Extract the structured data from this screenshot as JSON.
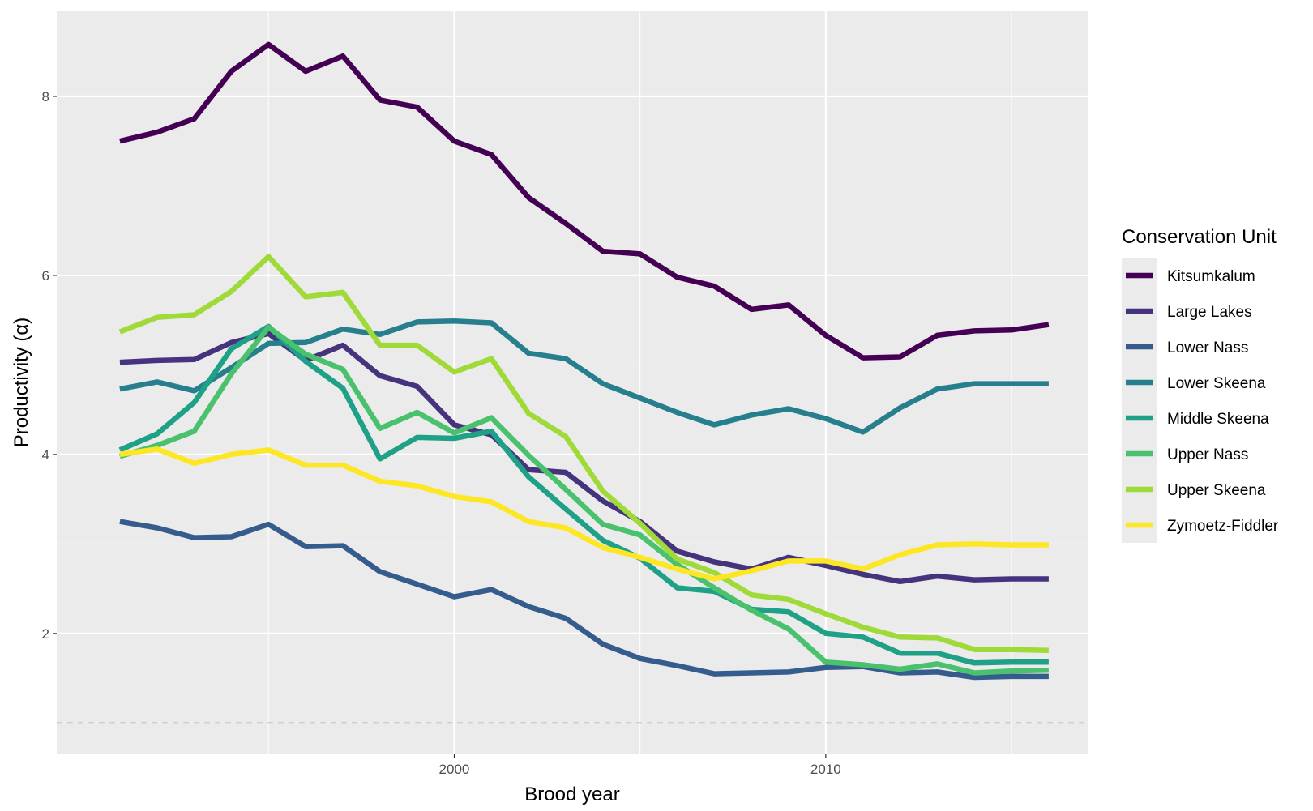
{
  "chart_data": {
    "type": "line",
    "xlabel": "Brood year",
    "ylabel": "Productivity (α)",
    "xlim": [
      1989.3,
      2017.05
    ],
    "ylim": [
      0.65,
      8.95
    ],
    "x_ticks": [
      2000,
      2010
    ],
    "x_minor_ticks": [
      1995,
      2005,
      2015
    ],
    "y_ticks": [
      2,
      4,
      6,
      8
    ],
    "y_minor_ticks": [
      1,
      3,
      5,
      7
    ],
    "grid": true,
    "reference_line": {
      "y": 1,
      "style": "dashed",
      "color": "#bdbdbd"
    },
    "legend": {
      "title": "Conservation Unit",
      "position": "right"
    },
    "x": [
      1991,
      1992,
      1993,
      1994,
      1995,
      1996,
      1997,
      1998,
      1999,
      2000,
      2001,
      2002,
      2003,
      2004,
      2005,
      2006,
      2007,
      2008,
      2009,
      2010,
      2011,
      2012,
      2013,
      2014,
      2015,
      2016,
      2017
    ],
    "series": [
      {
        "name": "Kitsumkalum",
        "color": "#440154",
        "values": [
          7.5,
          7.6,
          7.75,
          8.28,
          8.58,
          8.28,
          8.45,
          7.96,
          7.88,
          7.5,
          7.35,
          6.87,
          6.58,
          6.27,
          6.24,
          5.98,
          5.88,
          5.62,
          5.67,
          5.33,
          5.08,
          5.09,
          5.33,
          5.38,
          5.39,
          5.45,
          null
        ]
      },
      {
        "name": "Large Lakes",
        "color": "#46337E",
        "values": [
          5.03,
          5.05,
          5.06,
          5.25,
          5.35,
          5.05,
          5.22,
          4.88,
          4.76,
          4.33,
          4.22,
          3.83,
          3.8,
          3.48,
          3.25,
          2.92,
          2.8,
          2.72,
          2.85,
          2.76,
          2.66,
          2.58,
          2.64,
          2.6,
          2.61,
          2.61,
          null
        ]
      },
      {
        "name": "Lower Nass",
        "color": "#365C8D",
        "values": [
          3.25,
          3.18,
          3.07,
          3.08,
          3.22,
          2.97,
          2.98,
          2.69,
          2.55,
          2.41,
          2.49,
          2.3,
          2.17,
          1.88,
          1.72,
          1.64,
          1.55,
          1.56,
          1.57,
          1.62,
          1.63,
          1.56,
          1.57,
          1.51,
          1.52,
          1.52,
          null
        ]
      },
      {
        "name": "Lower Skeena",
        "color": "#277F8E",
        "values": [
          4.73,
          4.81,
          4.71,
          4.97,
          5.24,
          5.25,
          5.4,
          5.34,
          5.48,
          5.49,
          5.47,
          5.13,
          5.07,
          4.79,
          4.63,
          4.47,
          4.33,
          4.44,
          4.51,
          4.4,
          4.25,
          4.52,
          4.73,
          4.79,
          4.79,
          4.79,
          null
        ]
      },
      {
        "name": "Middle Skeena",
        "color": "#1FA187",
        "values": [
          4.05,
          4.23,
          4.58,
          5.18,
          5.43,
          5.04,
          4.74,
          3.95,
          4.19,
          4.18,
          4.26,
          3.75,
          3.39,
          3.04,
          2.84,
          2.51,
          2.47,
          2.27,
          2.24,
          2.0,
          1.96,
          1.78,
          1.78,
          1.67,
          1.68,
          1.68,
          null
        ]
      },
      {
        "name": "Upper Nass",
        "color": "#4AC16D",
        "values": [
          3.98,
          4.1,
          4.26,
          4.9,
          5.42,
          5.12,
          4.95,
          4.29,
          4.47,
          4.24,
          4.41,
          3.99,
          3.61,
          3.22,
          3.1,
          2.77,
          2.51,
          2.26,
          2.05,
          1.68,
          1.65,
          1.6,
          1.66,
          1.56,
          1.58,
          1.59,
          null
        ]
      },
      {
        "name": "Upper Skeena",
        "color": "#A0DA39",
        "values": [
          5.37,
          5.53,
          5.56,
          5.82,
          6.21,
          5.76,
          5.81,
          5.22,
          5.22,
          4.92,
          5.07,
          4.46,
          4.2,
          3.59,
          3.23,
          2.83,
          2.68,
          2.43,
          2.38,
          2.22,
          2.07,
          1.96,
          1.95,
          1.82,
          1.82,
          1.81,
          null
        ]
      },
      {
        "name": "Zymoetz-Fiddler",
        "color": "#FDE725",
        "values": [
          4.0,
          4.06,
          3.9,
          4.0,
          4.05,
          3.88,
          3.88,
          3.7,
          3.65,
          3.53,
          3.47,
          3.25,
          3.18,
          2.96,
          2.85,
          2.72,
          2.61,
          2.7,
          2.81,
          2.81,
          2.72,
          2.88,
          2.99,
          3.0,
          2.99,
          2.99,
          null
        ]
      }
    ]
  }
}
